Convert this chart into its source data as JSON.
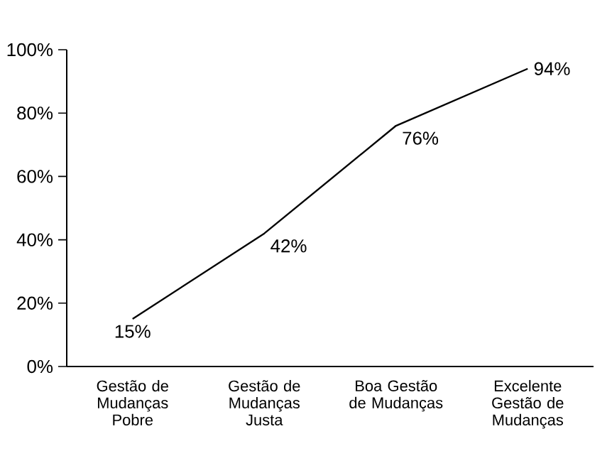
{
  "chart_data": {
    "type": "line",
    "categories": [
      "Gestão de Mudanças Pobre",
      "Gestão de Mudanças Justa",
      "Boa Gestão de Mudanças",
      "Excelente Gestão de Mudanças"
    ],
    "values": [
      15,
      42,
      76,
      94
    ],
    "value_labels": [
      "15%",
      "42%",
      "76%",
      "94%"
    ],
    "color": "#000000",
    "ylim": [
      0,
      100
    ],
    "yticks": [
      {
        "value": 0,
        "label": "0%"
      },
      {
        "value": 20,
        "label": "20%"
      },
      {
        "value": 40,
        "label": "40%"
      },
      {
        "value": 60,
        "label": "60%"
      },
      {
        "value": 80,
        "label": "80%"
      },
      {
        "value": 100,
        "label": "100%"
      }
    ],
    "grid": false,
    "marker": "none",
    "line_style": "solid"
  }
}
